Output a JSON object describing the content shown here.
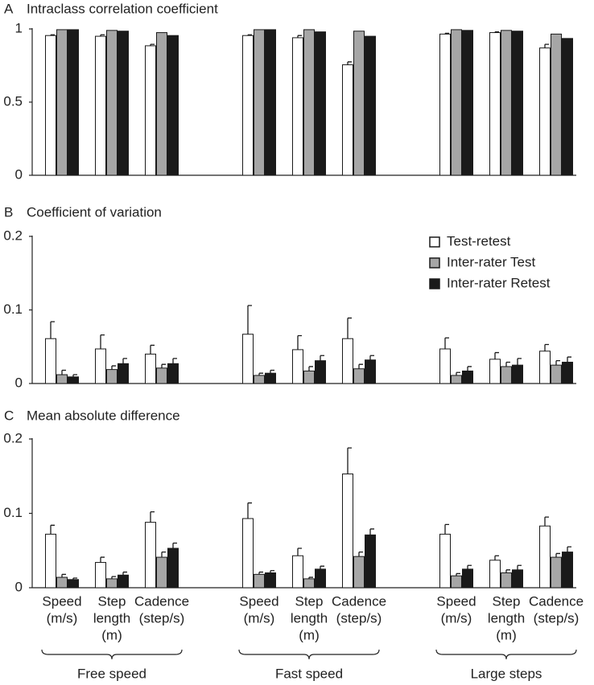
{
  "chart_data": [
    {
      "type": "bar",
      "label": "A",
      "title": "Intraclass correlation coefficient",
      "ylim": [
        0,
        1
      ],
      "yticks": [
        0,
        0.5,
        1
      ],
      "series": [
        {
          "color": "#ffffff",
          "values": [
            0.955,
            0.95,
            0.885,
            0.955,
            0.94,
            0.755,
            0.965,
            0.975,
            0.87
          ],
          "errors": [
            0.005,
            0.01,
            0.01,
            0.005,
            0.015,
            0.02,
            0.005,
            0.005,
            0.025
          ]
        },
        {
          "color": "#a6a6a6",
          "values": [
            0.995,
            0.99,
            0.975,
            0.995,
            0.995,
            0.985,
            0.995,
            0.99,
            0.965
          ]
        },
        {
          "color": "#1a1a1a",
          "values": [
            0.995,
            0.985,
            0.955,
            0.995,
            0.98,
            0.95,
            0.99,
            0.985,
            0.935
          ]
        }
      ]
    },
    {
      "type": "bar",
      "label": "B",
      "title": "Coefficient of variation",
      "ylim": [
        0,
        0.2
      ],
      "yticks": [
        0,
        0.1,
        0.2
      ],
      "series": [
        {
          "name": "Test-retest",
          "color": "#ffffff",
          "values": [
            0.061,
            0.047,
            0.04,
            0.067,
            0.046,
            0.061,
            0.047,
            0.033,
            0.044
          ],
          "errors": [
            0.023,
            0.019,
            0.012,
            0.039,
            0.019,
            0.028,
            0.015,
            0.009,
            0.009
          ]
        },
        {
          "name": "Inter-rater Test",
          "color": "#a6a6a6",
          "values": [
            0.012,
            0.019,
            0.021,
            0.011,
            0.017,
            0.02,
            0.011,
            0.023,
            0.025
          ],
          "errors": [
            0.006,
            0.005,
            0.005,
            0.003,
            0.006,
            0.006,
            0.004,
            0.006,
            0.006
          ]
        },
        {
          "name": "Inter-rater Retest",
          "color": "#1a1a1a",
          "values": [
            0.009,
            0.027,
            0.027,
            0.014,
            0.031,
            0.032,
            0.017,
            0.025,
            0.029
          ],
          "errors": [
            0.003,
            0.007,
            0.007,
            0.004,
            0.007,
            0.006,
            0.006,
            0.009,
            0.007
          ]
        }
      ]
    },
    {
      "type": "bar",
      "label": "C",
      "title": "Mean absolute difference",
      "ylim": [
        0,
        0.2
      ],
      "yticks": [
        0,
        0.1,
        0.2
      ],
      "categories": [
        [
          "Speed",
          "(m/s)"
        ],
        [
          "Step",
          "length",
          "(m)"
        ],
        [
          "Cadence",
          "(step/s)"
        ],
        [
          "Speed",
          "(m/s)"
        ],
        [
          "Step",
          "length",
          "(m)"
        ],
        [
          "Cadence",
          "(step/s)"
        ],
        [
          "Speed",
          "(m/s)"
        ],
        [
          "Step",
          "length",
          "(m)"
        ],
        [
          "Cadence",
          "(step/s)"
        ]
      ],
      "groups": [
        "Free speed",
        "Fast speed",
        "Large steps"
      ],
      "series": [
        {
          "color": "#ffffff",
          "values": [
            0.072,
            0.034,
            0.088,
            0.093,
            0.043,
            0.153,
            0.072,
            0.037,
            0.083
          ],
          "errors": [
            0.012,
            0.007,
            0.014,
            0.021,
            0.01,
            0.035,
            0.013,
            0.006,
            0.012
          ]
        },
        {
          "color": "#a6a6a6",
          "values": [
            0.014,
            0.012,
            0.041,
            0.018,
            0.012,
            0.042,
            0.016,
            0.02,
            0.041
          ],
          "errors": [
            0.004,
            0.003,
            0.007,
            0.003,
            0.002,
            0.006,
            0.003,
            0.004,
            0.005
          ]
        },
        {
          "color": "#1a1a1a",
          "values": [
            0.011,
            0.017,
            0.053,
            0.02,
            0.025,
            0.071,
            0.025,
            0.024,
            0.048
          ],
          "errors": [
            0.002,
            0.004,
            0.007,
            0.003,
            0.004,
            0.008,
            0.005,
            0.006,
            0.007
          ]
        }
      ]
    }
  ]
}
